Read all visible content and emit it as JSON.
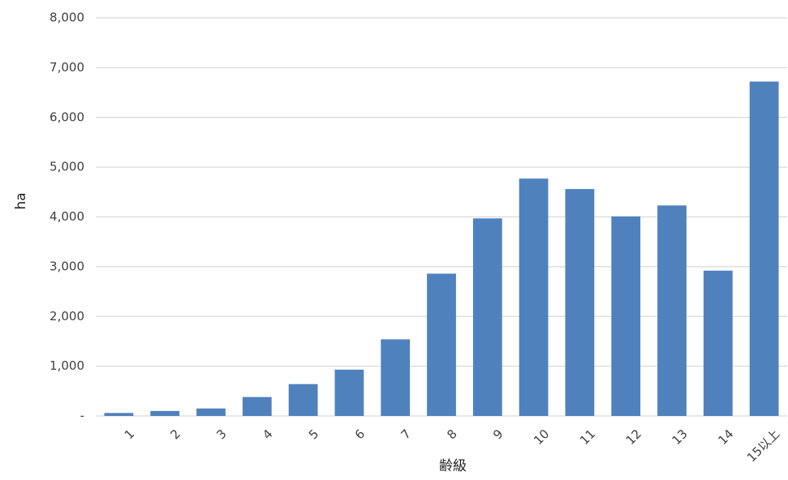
{
  "chart_data": {
    "type": "bar",
    "title": "",
    "xlabel": "齢級",
    "ylabel": "ha",
    "categories": [
      "1",
      "2",
      "3",
      "4",
      "5",
      "6",
      "7",
      "8",
      "9",
      "10",
      "11",
      "12",
      "13",
      "14",
      "15以上"
    ],
    "values": [
      60,
      100,
      150,
      380,
      640,
      930,
      1540,
      2860,
      3970,
      4770,
      4560,
      4010,
      4230,
      2920,
      6720
    ],
    "ylim": [
      0,
      8000
    ],
    "yticks": [
      0,
      1000,
      2000,
      3000,
      4000,
      5000,
      6000,
      7000,
      8000
    ],
    "ytick_labels": [
      "-",
      "1,000",
      "2,000",
      "3,000",
      "4,000",
      "5,000",
      "6,000",
      "7,000",
      "8,000"
    ],
    "grid": true,
    "legend": "none",
    "bar_color": "#4f81bd",
    "grid_color": "#d9d9d9"
  }
}
